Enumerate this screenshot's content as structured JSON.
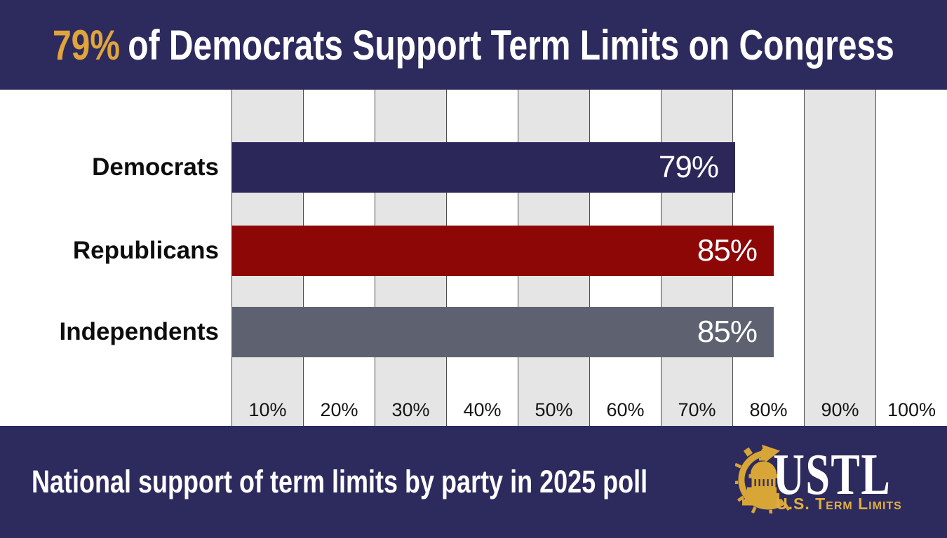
{
  "header": {
    "title_highlight": "79%",
    "title_rest": "of Democrats Support Term Limits on Congress"
  },
  "chart_data": {
    "type": "bar",
    "orientation": "horizontal",
    "title": "79% of Democrats Support Term Limits on Congress",
    "categories": [
      "Democrats",
      "Republicans",
      "Independents"
    ],
    "values": [
      79,
      85,
      85
    ],
    "value_labels": [
      "79%",
      "85%",
      "85%"
    ],
    "bar_colors": [
      "#2b2859",
      "#8d0707",
      "#5e6270"
    ],
    "x_tick_labels": [
      "10%",
      "20%",
      "30%",
      "40%",
      "50%",
      "60%",
      "70%",
      "80%",
      "90%",
      "100%"
    ],
    "xlim": [
      0,
      100
    ],
    "grid": "alternating-vertical-bands",
    "legend": "none"
  },
  "footer": {
    "caption": "National support of term limits by party in 2025 poll",
    "logo": {
      "acronym": "USTL",
      "name": "U.S. Term Limits",
      "icon": "stopwatch-capitol-icon"
    }
  },
  "colors": {
    "banner_navy": "#2d2a5e",
    "bar_navy": "#2b2859",
    "bar_red": "#8d0707",
    "bar_slate": "#5e6270",
    "band_gray": "#e5e5e5",
    "gridline": "#4c4c4c",
    "title_gold": "#dfa53c",
    "logo_gold": "#d7a637",
    "text_white": "#ffffff",
    "label_black": "#111111"
  }
}
